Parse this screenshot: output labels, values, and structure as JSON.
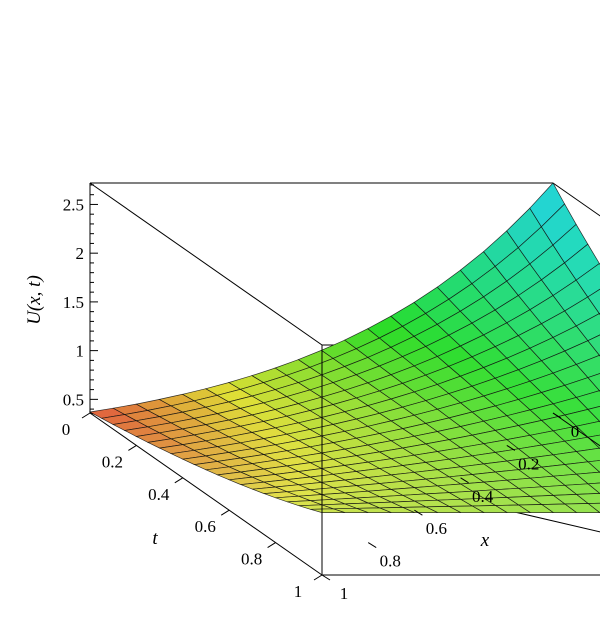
{
  "chart_data": {
    "type": "surface",
    "title": "",
    "zlabel": "U(x, t)",
    "xlabel": "x",
    "ylabel": "t",
    "xlim": [
      0,
      1
    ],
    "tlim": [
      0,
      1
    ],
    "zlim": [
      0.36,
      2.72
    ],
    "x_ticks": [
      "0",
      "0.2",
      "0.4",
      "0.6",
      "0.8",
      "1"
    ],
    "t_ticks": [
      "0",
      "0.2",
      "0.4",
      "0.6",
      "0.8",
      "1"
    ],
    "z_ticks": [
      "0.5",
      "1",
      "1.5",
      "2",
      "2.5"
    ],
    "z_tick_values": [
      0.5,
      1,
      1.5,
      2,
      2.5
    ],
    "corner_values": {
      "x0_t0": 0.37,
      "x0_t1": 1.0,
      "x1_t0": 2.72,
      "x1_t1": 1.0
    },
    "grid_divisions": 20,
    "colormap": "hue gradient (red → yellow → green → cyan → blue)"
  }
}
